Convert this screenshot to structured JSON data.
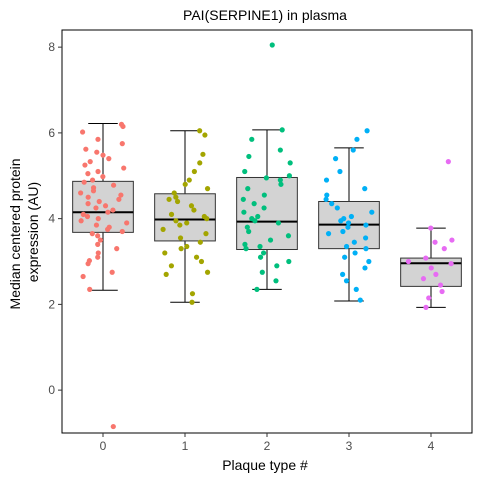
{
  "chart_data": {
    "type": "boxplot",
    "title": "PAI(SERPINE1) in plasma",
    "xlabel": "Plaque type #",
    "ylabel_lines": [
      "Median centered protein",
      "expression (AU)"
    ],
    "categories": [
      "0",
      "1",
      "2",
      "3",
      "4"
    ],
    "ylim": [
      -1.0,
      8.4
    ],
    "yticks": [
      0,
      2,
      4,
      6,
      8
    ],
    "ytick_labels": [
      "0",
      "2",
      "4",
      "6",
      "8"
    ],
    "grid": false,
    "box_fill": "#d3d3d3",
    "boxes": [
      {
        "category": "0",
        "whisker_low": 2.33,
        "q1": 3.68,
        "median": 4.15,
        "q3": 4.87,
        "whisker_high": 6.22,
        "outliers": [
          -0.85
        ]
      },
      {
        "category": "1",
        "whisker_low": 2.05,
        "q1": 3.48,
        "median": 3.98,
        "q3": 4.58,
        "whisker_high": 6.05,
        "outliers": []
      },
      {
        "category": "2",
        "whisker_low": 2.35,
        "q1": 3.28,
        "median": 3.93,
        "q3": 4.96,
        "whisker_high": 6.07,
        "outliers": [
          8.05
        ]
      },
      {
        "category": "3",
        "whisker_low": 2.08,
        "q1": 3.3,
        "median": 3.86,
        "q3": 4.4,
        "whisker_high": 5.65,
        "outliers": [
          6.05
        ]
      },
      {
        "category": "4",
        "whisker_low": 1.93,
        "q1": 2.42,
        "median": 2.96,
        "q3": 3.08,
        "whisker_high": 3.78,
        "outliers": [
          5.33
        ]
      }
    ],
    "series": [
      {
        "category": "0",
        "color": "#F8766D",
        "values": [
          6.2,
          6.15,
          6.02,
          5.85,
          5.75,
          5.62,
          5.55,
          5.48,
          5.4,
          5.33,
          5.25,
          5.18,
          5.1,
          5.05,
          4.98,
          4.9,
          4.85,
          4.78,
          4.72,
          4.65,
          4.6,
          4.55,
          4.5,
          4.45,
          4.4,
          4.35,
          4.3,
          4.25,
          4.2,
          4.15,
          4.1,
          4.05,
          4.0,
          3.95,
          3.9,
          3.85,
          3.8,
          3.75,
          3.7,
          3.65,
          3.6,
          3.5,
          3.4,
          3.3,
          3.2,
          3.1,
          3.02,
          2.95,
          2.75,
          2.65,
          2.35,
          -0.85
        ]
      },
      {
        "category": "1",
        "color": "#A3A500",
        "values": [
          6.05,
          5.95,
          5.5,
          5.3,
          5.1,
          4.9,
          4.8,
          4.7,
          4.6,
          4.5,
          4.45,
          4.4,
          4.3,
          4.2,
          4.1,
          4.05,
          4.0,
          3.95,
          3.9,
          3.85,
          3.75,
          3.65,
          3.55,
          3.45,
          3.35,
          3.3,
          3.2,
          3.1,
          3.0,
          2.9,
          2.75,
          2.7,
          2.25,
          2.05
        ]
      },
      {
        "category": "2",
        "color": "#00BF7D",
        "values": [
          8.05,
          6.07,
          5.85,
          5.6,
          5.45,
          5.3,
          5.1,
          5.0,
          4.95,
          4.9,
          4.8,
          4.7,
          4.55,
          4.45,
          4.35,
          4.25,
          4.15,
          4.05,
          4.0,
          3.95,
          3.9,
          3.8,
          3.7,
          3.6,
          3.5,
          3.4,
          3.35,
          3.3,
          3.2,
          3.1,
          3.0,
          2.9,
          2.75,
          2.55,
          2.35
        ]
      },
      {
        "category": "3",
        "color": "#00B0F6",
        "values": [
          6.05,
          5.85,
          5.6,
          5.4,
          5.1,
          4.9,
          4.7,
          4.55,
          4.45,
          4.35,
          4.25,
          4.15,
          4.05,
          4.0,
          3.95,
          3.9,
          3.85,
          3.8,
          3.7,
          3.65,
          3.55,
          3.45,
          3.35,
          3.3,
          3.2,
          3.1,
          3.0,
          2.85,
          2.7,
          2.55,
          2.35,
          2.1
        ]
      },
      {
        "category": "4",
        "color": "#E76BF3",
        "values": [
          5.33,
          3.78,
          3.5,
          3.45,
          3.3,
          3.08,
          3.0,
          2.95,
          2.85,
          2.7,
          2.6,
          2.45,
          2.3,
          2.15,
          1.93
        ]
      }
    ]
  }
}
